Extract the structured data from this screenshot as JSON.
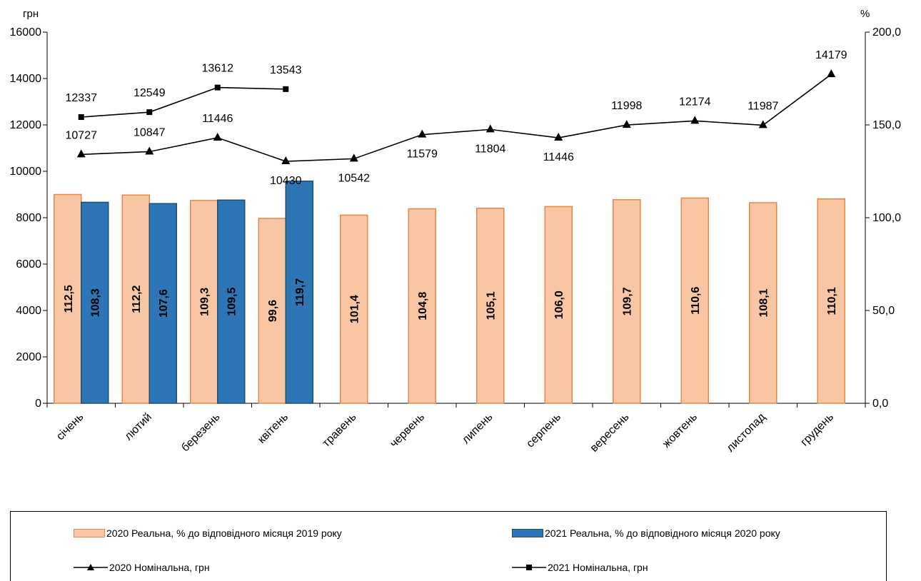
{
  "chart_data": {
    "type": "bar+line",
    "categories": [
      "січень",
      "лютий",
      "березень",
      "квітень",
      "травень",
      "червень",
      "липень",
      "серпень",
      "вересень",
      "жовтень",
      "листопад",
      "грудень"
    ],
    "left_axis": {
      "unit": "грн",
      "min": 0,
      "max": 16000,
      "step": 2000,
      "ticks": [
        "0",
        "2000",
        "4000",
        "6000",
        "8000",
        "10000",
        "12000",
        "14000",
        "16000"
      ]
    },
    "right_axis": {
      "unit": "%",
      "min": 0,
      "max": 200,
      "step": 50,
      "ticks": [
        "0,0",
        "50,0",
        "100,0",
        "150,0",
        "200,0"
      ]
    },
    "bar_series": [
      {
        "name": "2020 Реальна, % до відповідного місяця 2019 року",
        "color": "#F9C6A4",
        "border": "#E4884A",
        "values": [
          112.5,
          112.2,
          109.3,
          99.6,
          101.4,
          104.8,
          105.1,
          106.0,
          109.7,
          110.6,
          108.1,
          110.1
        ],
        "labels": [
          "112,5",
          "112,2",
          "109,3",
          "99,6",
          "101,4",
          "104,8",
          "105,1",
          "106,0",
          "109,7",
          "110,6",
          "108,1",
          "110,1"
        ]
      },
      {
        "name": "2021 Реальна, % до відповідного місяця 2020 року",
        "color": "#2E75B6",
        "border": "#1F4E79",
        "values": [
          108.3,
          107.6,
          109.5,
          119.7,
          null,
          null,
          null,
          null,
          null,
          null,
          null,
          null
        ],
        "labels": [
          "108,3",
          "107,6",
          "109,5",
          "119,7",
          "",
          "",
          "",
          "",
          "",
          "",
          "",
          ""
        ]
      }
    ],
    "line_series": [
      {
        "name": "2020 Номінальна, грн",
        "marker": "triangle",
        "values": [
          10727,
          10847,
          11446,
          10430,
          10542,
          11579,
          11804,
          11446,
          11998,
          12174,
          11987,
          14179
        ],
        "labels": [
          "10727",
          "10847",
          "11446",
          "10430",
          "10542",
          "11579",
          "11804",
          "11446",
          "11998",
          "12174",
          "11987",
          "14179"
        ],
        "label_pos": [
          "above",
          "above",
          "above",
          "below",
          "below",
          "below",
          "below",
          "below",
          "above",
          "above",
          "above",
          "above"
        ]
      },
      {
        "name": "2021 Номінальна, грн",
        "marker": "square",
        "values": [
          12337,
          12549,
          13612,
          13543,
          null,
          null,
          null,
          null,
          null,
          null,
          null,
          null
        ],
        "labels": [
          "12337",
          "12549",
          "13612",
          "13543",
          "",
          "",
          "",
          "",
          "",
          "",
          "",
          ""
        ],
        "label_pos": [
          "above",
          "above",
          "above",
          "above",
          "",
          "",
          "",
          "",
          "",
          "",
          "",
          ""
        ]
      }
    ],
    "legend_position": "bottom",
    "grid": false
  },
  "legend": {
    "bar2020": "2020 Реальна, % до відповідного місяця 2019 року",
    "bar2021": "2021 Реальна, % до відповідного місяця 2020 року",
    "line2020": "2020 Номінальна, грн",
    "line2021": "2021 Номінальна, грн"
  }
}
